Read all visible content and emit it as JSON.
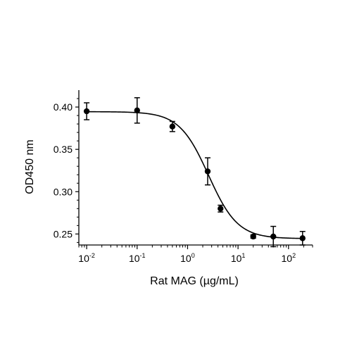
{
  "chart_data": {
    "type": "scatter",
    "xlabel": "Rat MAG (µg/mL)",
    "ylabel": "OD450 nm",
    "x_scale": "log",
    "xlim": [
      0.007,
      300
    ],
    "ylim": [
      0.237,
      0.42
    ],
    "x_ticks": [
      {
        "value": 0.01,
        "base": "10",
        "exp": "-2"
      },
      {
        "value": 0.1,
        "base": "10",
        "exp": "-1"
      },
      {
        "value": 1,
        "base": "10",
        "exp": "0"
      },
      {
        "value": 10,
        "base": "10",
        "exp": "1"
      },
      {
        "value": 100,
        "base": "10",
        "exp": "2"
      }
    ],
    "y_ticks": [
      {
        "value": 0.25,
        "label": "0.25"
      },
      {
        "value": 0.3,
        "label": "0.30"
      },
      {
        "value": 0.35,
        "label": "0.35"
      },
      {
        "value": 0.4,
        "label": "0.40"
      }
    ],
    "grid": false,
    "points": [
      {
        "x": 0.01,
        "y": 0.395,
        "err": 0.01
      },
      {
        "x": 0.1,
        "y": 0.396,
        "err": 0.015
      },
      {
        "x": 0.5,
        "y": 0.377,
        "err": 0.006
      },
      {
        "x": 2.5,
        "y": 0.324,
        "err": 0.016
      },
      {
        "x": 4.5,
        "y": 0.28,
        "err": 0.004
      },
      {
        "x": 20,
        "y": 0.247,
        "err": 0.002
      },
      {
        "x": 50,
        "y": 0.247,
        "err": 0.012
      },
      {
        "x": 190,
        "y": 0.245,
        "err": 0.008
      }
    ],
    "fit": {
      "model": "4PL",
      "top": 0.3945,
      "bottom": 0.2445,
      "ec50": 2.6,
      "hill": 1.5
    }
  }
}
